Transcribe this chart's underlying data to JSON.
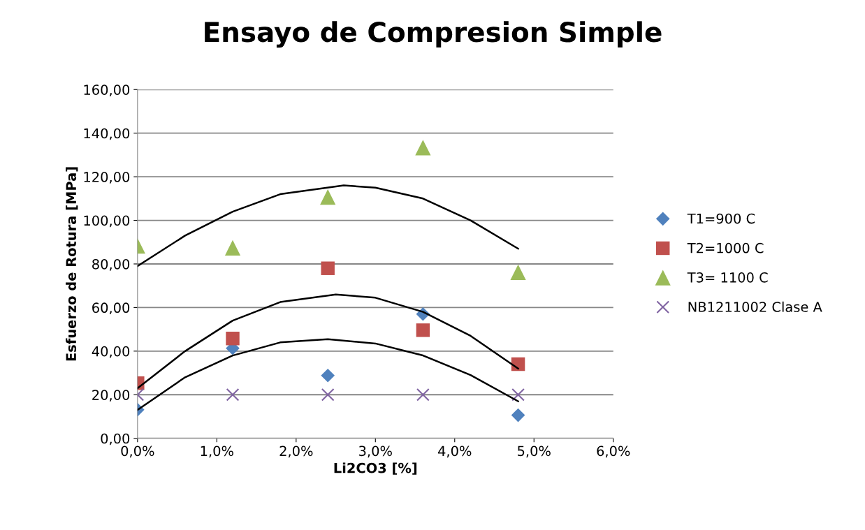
{
  "chart_data": {
    "type": "scatter",
    "title": "Ensayo de Compresion Simple",
    "xlabel": "Li2CO3 [%]",
    "ylabel": "Esfuerzo de Rotura [MPa]",
    "x": [
      0,
      1.2,
      2.4,
      3.6,
      4.8
    ],
    "series": [
      {
        "name": "T1=900 C",
        "color": "#4f81bd",
        "marker": "diamond",
        "values": [
          13.1,
          41.3,
          28.8,
          57,
          10.6
        ]
      },
      {
        "name": "T2=1000 C",
        "color": "#c0504d",
        "marker": "square",
        "values": [
          25.3,
          45.8,
          78,
          49.6,
          34
        ]
      },
      {
        "name": "T3= 1100 C",
        "color": "#9bbb59",
        "marker": "triangle",
        "values": [
          88.3,
          87.4,
          110.7,
          133.4,
          76.2
        ]
      },
      {
        "name": "NB1211002 Clase A",
        "color": "#8064a2",
        "marker": "cross",
        "values": [
          20,
          20,
          20,
          20,
          20
        ]
      },
      {
        "type": "line",
        "color": "#000000",
        "marker": "none",
        "x": [
          0,
          0.6,
          1.2,
          1.8,
          2.4,
          3.0,
          3.6,
          4.2,
          4.8
        ],
        "values": [
          13,
          28,
          38,
          44,
          45.5,
          43.5,
          38,
          29,
          17
        ]
      },
      {
        "type": "line",
        "color": "#000000",
        "marker": "none",
        "x": [
          0,
          0.6,
          1.2,
          1.8,
          2.5,
          3.0,
          3.6,
          4.2,
          4.8
        ],
        "values": [
          23,
          40,
          54,
          62.5,
          66,
          64.5,
          58,
          47,
          32
        ]
      },
      {
        "type": "line",
        "color": "#000000",
        "marker": "none",
        "x": [
          0,
          0.6,
          1.2,
          1.8,
          2.6,
          3.0,
          3.6,
          4.2,
          4.8
        ],
        "values": [
          79,
          93,
          104,
          112,
          116,
          115,
          110,
          100,
          87
        ]
      }
    ],
    "xlim": [
      0,
      6
    ],
    "xticks": [
      {
        "value": 0,
        "label": "0,0%"
      },
      {
        "value": 1,
        "label": "1,0%"
      },
      {
        "value": 2,
        "label": "2,0%"
      },
      {
        "value": 3,
        "label": "3,0%"
      },
      {
        "value": 4,
        "label": "4,0%"
      },
      {
        "value": 5,
        "label": "5,0%"
      },
      {
        "value": 6,
        "label": "6,0%"
      }
    ],
    "ylim": [
      0,
      160
    ],
    "yticks": [
      {
        "value": 0,
        "label": "0,00"
      },
      {
        "value": 20,
        "label": "20,00"
      },
      {
        "value": 40,
        "label": "40,00"
      },
      {
        "value": 60,
        "label": "60,00"
      },
      {
        "value": 80,
        "label": "80,00"
      },
      {
        "value": 100,
        "label": "100,00"
      },
      {
        "value": 120,
        "label": "120,00"
      },
      {
        "value": 140,
        "label": "140,00"
      },
      {
        "value": 160,
        "label": "160,00"
      }
    ],
    "grid": "y",
    "legend": "right"
  }
}
